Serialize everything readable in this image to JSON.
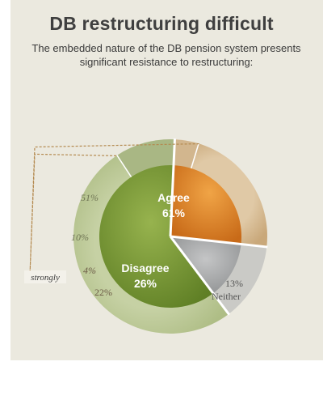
{
  "title": "DB restructuring difficult",
  "subtitle_line1": "The embedded nature of the DB pension system presents",
  "subtitle_line2": "significant resistance to restructuring:",
  "chart_data": {
    "type": "pie",
    "title": "DB restructuring difficult",
    "categories": [
      "Agree",
      "Disagree",
      "Neither"
    ],
    "values": [
      61,
      26,
      13
    ],
    "inner_labels": [
      "Agree",
      "61%",
      "Disagree",
      "26%"
    ],
    "breakdown": {
      "agree": [
        {
          "label": "51%",
          "value": 51
        },
        {
          "label": "10%",
          "value": 10,
          "note": "strongly"
        }
      ],
      "disagree": [
        {
          "label": "4%",
          "value": 4,
          "note": "strongly"
        },
        {
          "label": "22%",
          "value": 22
        }
      ],
      "neither": [
        {
          "label": "13%",
          "value": 13
        },
        {
          "label": "Neither"
        }
      ]
    },
    "bracket_label": "strongly",
    "colors": {
      "agree_inner": "#7a9a3c",
      "agree_outer": "#bfcb9c",
      "agree_strong": "#a9b784",
      "disagree_inner": "#e0892c",
      "disagree_outer": "#dcc3a0",
      "disagree_strong": "#d2b68e",
      "neither_inner": "#a7a8a9",
      "neither_outer": "#cacac6"
    }
  }
}
